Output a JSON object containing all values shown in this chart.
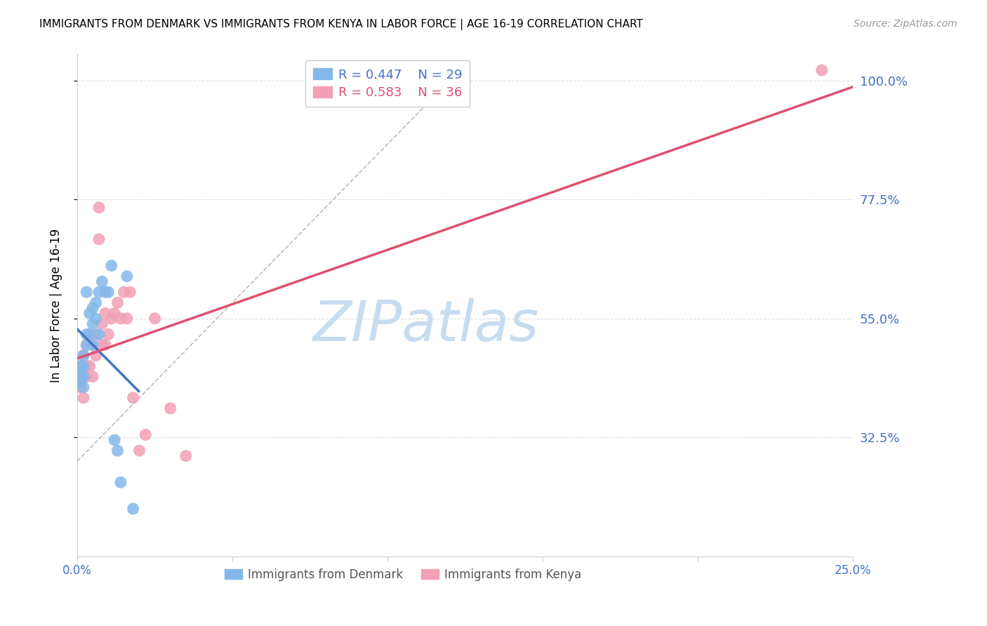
{
  "title": "IMMIGRANTS FROM DENMARK VS IMMIGRANTS FROM KENYA IN LABOR FORCE | AGE 16-19 CORRELATION CHART",
  "source": "Source: ZipAtlas.com",
  "ylabel": "In Labor Force | Age 16-19",
  "xlim": [
    0.0,
    0.25
  ],
  "ylim": [
    0.1,
    1.05
  ],
  "xticks": [
    0.0,
    0.05,
    0.1,
    0.15,
    0.2,
    0.25
  ],
  "xticklabels": [
    "0.0%",
    "",
    "",
    "",
    "",
    "25.0%"
  ],
  "yticks": [
    0.325,
    0.55,
    0.775,
    1.0
  ],
  "yticklabels": [
    "32.5%",
    "55.0%",
    "77.5%",
    "100.0%"
  ],
  "denmark_color": "#85B8EA",
  "kenya_color": "#F2A0B5",
  "denmark_R": 0.447,
  "denmark_N": 29,
  "kenya_R": 0.583,
  "kenya_N": 36,
  "denmark_x": [
    0.001,
    0.001,
    0.001,
    0.001,
    0.002,
    0.002,
    0.002,
    0.002,
    0.003,
    0.003,
    0.003,
    0.004,
    0.004,
    0.005,
    0.005,
    0.005,
    0.006,
    0.006,
    0.007,
    0.007,
    0.008,
    0.009,
    0.01,
    0.011,
    0.012,
    0.013,
    0.014,
    0.016,
    0.018
  ],
  "denmark_y": [
    0.43,
    0.44,
    0.45,
    0.46,
    0.42,
    0.44,
    0.46,
    0.48,
    0.5,
    0.52,
    0.6,
    0.52,
    0.56,
    0.5,
    0.54,
    0.57,
    0.55,
    0.58,
    0.52,
    0.6,
    0.62,
    0.6,
    0.6,
    0.65,
    0.32,
    0.3,
    0.24,
    0.63,
    0.19
  ],
  "kenya_x": [
    0.001,
    0.001,
    0.001,
    0.002,
    0.002,
    0.002,
    0.003,
    0.003,
    0.003,
    0.004,
    0.004,
    0.005,
    0.005,
    0.006,
    0.006,
    0.007,
    0.007,
    0.008,
    0.008,
    0.009,
    0.009,
    0.01,
    0.011,
    0.012,
    0.013,
    0.014,
    0.015,
    0.016,
    0.017,
    0.018,
    0.02,
    0.022,
    0.025,
    0.03,
    0.035,
    0.24
  ],
  "kenya_y": [
    0.42,
    0.44,
    0.46,
    0.4,
    0.44,
    0.48,
    0.44,
    0.46,
    0.5,
    0.46,
    0.52,
    0.44,
    0.5,
    0.48,
    0.52,
    0.7,
    0.76,
    0.5,
    0.54,
    0.5,
    0.56,
    0.52,
    0.55,
    0.56,
    0.58,
    0.55,
    0.6,
    0.55,
    0.6,
    0.4,
    0.3,
    0.33,
    0.55,
    0.38,
    0.29,
    1.02
  ],
  "watermark": "ZIPatlas",
  "watermark_color": "#C8DCF0",
  "denmark_line_color": "#4472C4",
  "kenya_line_color": "#E05070",
  "ref_line_color": "#AAAAAA",
  "title_fontsize": 11,
  "axis_color": "#4472C4",
  "legend_R_color_denmark": "#4472C4",
  "legend_R_color_kenya": "#E05070",
  "grid_color": "#DDDDDD"
}
